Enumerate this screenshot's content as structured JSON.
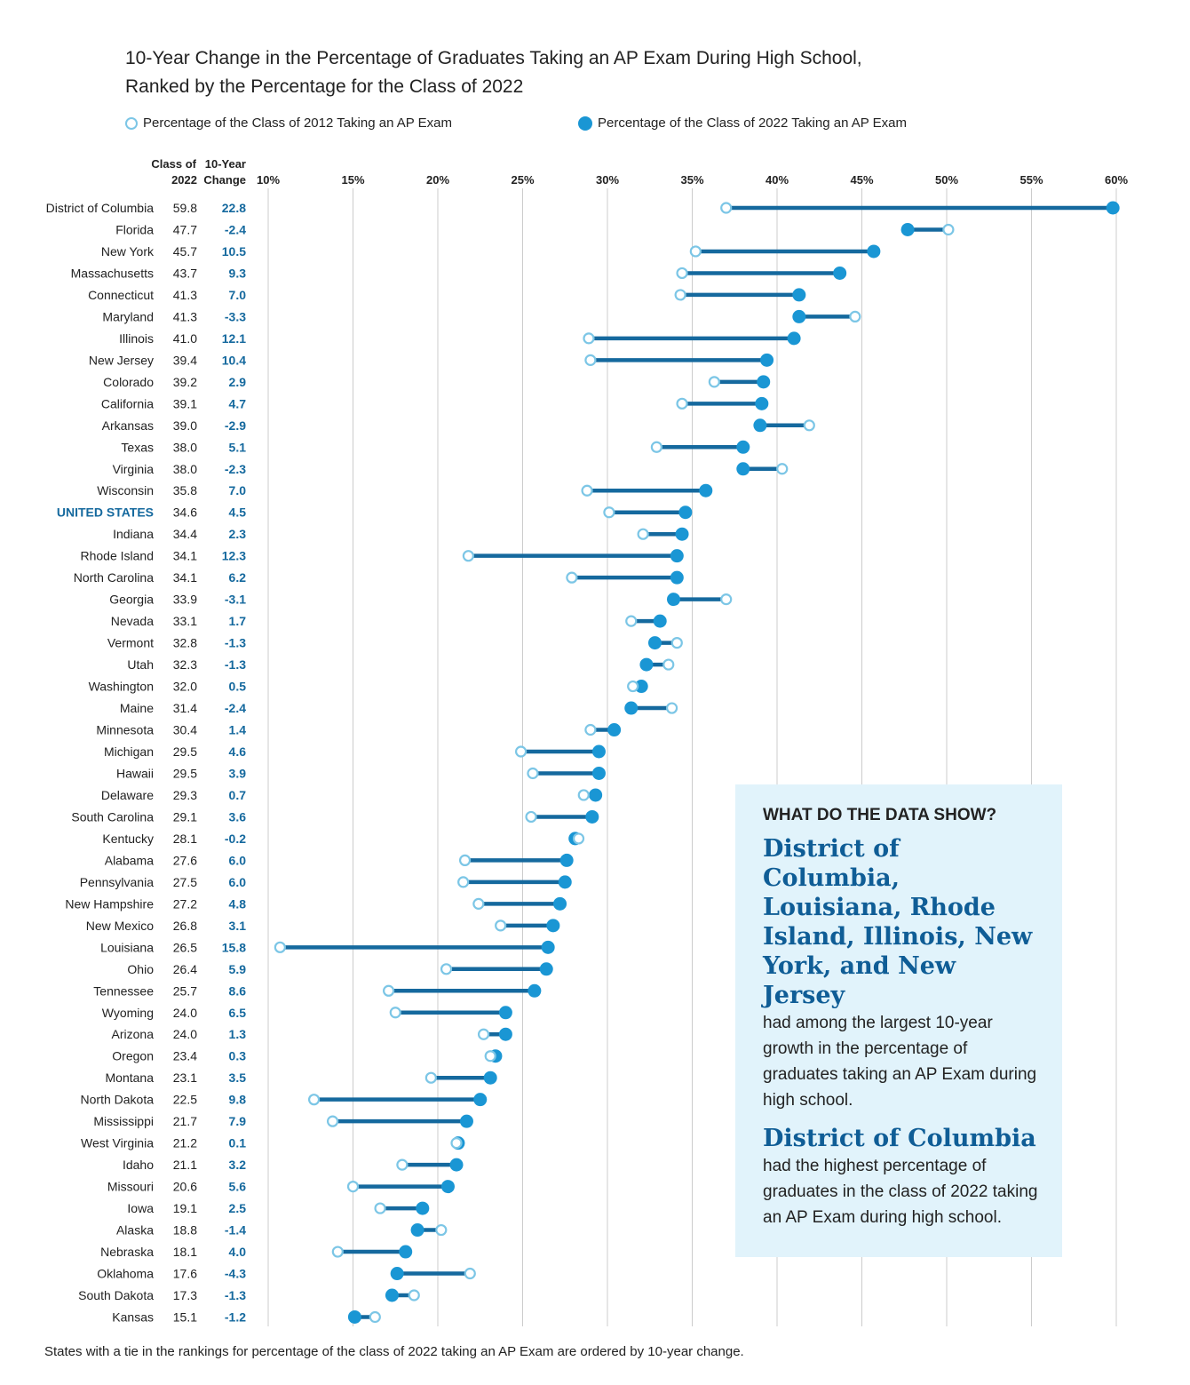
{
  "title": {
    "line1": "10-Year Change in the Percentage of Graduates Taking an AP Exam During High School,",
    "line2": "Ranked by the Percentage for the Class of 2022"
  },
  "legend": {
    "open_label": "Percentage of the Class of 2012 Taking an AP Exam",
    "filled_label": "Percentage of the Class of 2022 Taking an AP Exam"
  },
  "column_headers": {
    "class_line1": "Class of",
    "class_line2": "2022",
    "change_line1": "10-Year",
    "change_line2": "Change"
  },
  "colors": {
    "line": "#15699e",
    "filled": "#1a96d4",
    "open": "#7cc6e6",
    "us_label": "#15699e",
    "change_text": "#15699e",
    "grid": "#cccccc"
  },
  "callout": {
    "heading": "WHAT DO THE DATA SHOW?",
    "highlight1": "District of Columbia, Louisiana, Rhode Island, Illinois, New York, and New Jersey",
    "text1": "had among the largest 10-year growth in the percentage of graduates taking an AP Exam during high school.",
    "highlight2": "District of Columbia",
    "text2": "had the highest percentage of graduates in the class of 2022 taking an AP Exam during high school."
  },
  "footnote": "States with a tie in the rankings for percentage of the class of 2022 taking an AP Exam are ordered by 10-year change.",
  "chart_data": {
    "type": "dumbbell",
    "title": "10-Year Change in the Percentage of Graduates Taking an AP Exam During High School, Ranked by the Percentage for the Class of 2022",
    "xlim": [
      10,
      60
    ],
    "ticks": [
      "10%",
      "15%",
      "20%",
      "25%",
      "30%",
      "35%",
      "40%",
      "45%",
      "50%",
      "55%",
      "60%"
    ],
    "tick_values": [
      10,
      15,
      20,
      25,
      30,
      35,
      40,
      45,
      50,
      55,
      60
    ],
    "series": [
      {
        "name": "Percentage of the Class of 2012 Taking an AP Exam",
        "marker": "open"
      },
      {
        "name": "Percentage of the Class of 2022 Taking an AP Exam",
        "marker": "filled"
      }
    ],
    "rows": [
      {
        "state": "District of Columbia",
        "v2022": "59.8",
        "change": "22.8"
      },
      {
        "state": "Florida",
        "v2022": "47.7",
        "change": "-2.4"
      },
      {
        "state": "New York",
        "v2022": "45.7",
        "change": "10.5"
      },
      {
        "state": "Massachusetts",
        "v2022": "43.7",
        "change": "9.3"
      },
      {
        "state": "Connecticut",
        "v2022": "41.3",
        "change": "7.0"
      },
      {
        "state": "Maryland",
        "v2022": "41.3",
        "change": "-3.3"
      },
      {
        "state": "Illinois",
        "v2022": "41.0",
        "change": "12.1"
      },
      {
        "state": "New Jersey",
        "v2022": "39.4",
        "change": "10.4"
      },
      {
        "state": "Colorado",
        "v2022": "39.2",
        "change": "2.9"
      },
      {
        "state": "California",
        "v2022": "39.1",
        "change": "4.7"
      },
      {
        "state": "Arkansas",
        "v2022": "39.0",
        "change": "-2.9"
      },
      {
        "state": "Texas",
        "v2022": "38.0",
        "change": "5.1"
      },
      {
        "state": "Virginia",
        "v2022": "38.0",
        "change": "-2.3"
      },
      {
        "state": "Wisconsin",
        "v2022": "35.8",
        "change": "7.0"
      },
      {
        "state": "UNITED STATES",
        "v2022": "34.6",
        "change": "4.5",
        "highlight": true
      },
      {
        "state": "Indiana",
        "v2022": "34.4",
        "change": "2.3"
      },
      {
        "state": "Rhode Island",
        "v2022": "34.1",
        "change": "12.3"
      },
      {
        "state": "North Carolina",
        "v2022": "34.1",
        "change": "6.2"
      },
      {
        "state": "Georgia",
        "v2022": "33.9",
        "change": "-3.1"
      },
      {
        "state": "Nevada",
        "v2022": "33.1",
        "change": "1.7"
      },
      {
        "state": "Vermont",
        "v2022": "32.8",
        "change": "-1.3"
      },
      {
        "state": "Utah",
        "v2022": "32.3",
        "change": "-1.3"
      },
      {
        "state": "Washington",
        "v2022": "32.0",
        "change": "0.5"
      },
      {
        "state": "Maine",
        "v2022": "31.4",
        "change": "-2.4"
      },
      {
        "state": "Minnesota",
        "v2022": "30.4",
        "change": "1.4"
      },
      {
        "state": "Michigan",
        "v2022": "29.5",
        "change": "4.6"
      },
      {
        "state": "Hawaii",
        "v2022": "29.5",
        "change": "3.9"
      },
      {
        "state": "Delaware",
        "v2022": "29.3",
        "change": "0.7"
      },
      {
        "state": "South Carolina",
        "v2022": "29.1",
        "change": "3.6"
      },
      {
        "state": "Kentucky",
        "v2022": "28.1",
        "change": "-0.2"
      },
      {
        "state": "Alabama",
        "v2022": "27.6",
        "change": "6.0"
      },
      {
        "state": "Pennsylvania",
        "v2022": "27.5",
        "change": "6.0"
      },
      {
        "state": "New Hampshire",
        "v2022": "27.2",
        "change": "4.8"
      },
      {
        "state": "New Mexico",
        "v2022": "26.8",
        "change": "3.1"
      },
      {
        "state": "Louisiana",
        "v2022": "26.5",
        "change": "15.8"
      },
      {
        "state": "Ohio",
        "v2022": "26.4",
        "change": "5.9"
      },
      {
        "state": "Tennessee",
        "v2022": "25.7",
        "change": "8.6"
      },
      {
        "state": "Wyoming",
        "v2022": "24.0",
        "change": "6.5"
      },
      {
        "state": "Arizona",
        "v2022": "24.0",
        "change": "1.3"
      },
      {
        "state": "Oregon",
        "v2022": "23.4",
        "change": "0.3"
      },
      {
        "state": "Montana",
        "v2022": "23.1",
        "change": "3.5"
      },
      {
        "state": "North Dakota",
        "v2022": "22.5",
        "change": "9.8"
      },
      {
        "state": "Mississippi",
        "v2022": "21.7",
        "change": "7.9"
      },
      {
        "state": "West Virginia",
        "v2022": "21.2",
        "change": "0.1"
      },
      {
        "state": "Idaho",
        "v2022": "21.1",
        "change": "3.2"
      },
      {
        "state": "Missouri",
        "v2022": "20.6",
        "change": "5.6"
      },
      {
        "state": "Iowa",
        "v2022": "19.1",
        "change": "2.5"
      },
      {
        "state": "Alaska",
        "v2022": "18.8",
        "change": "-1.4"
      },
      {
        "state": "Nebraska",
        "v2022": "18.1",
        "change": "4.0"
      },
      {
        "state": "Oklahoma",
        "v2022": "17.6",
        "change": "-4.3"
      },
      {
        "state": "South Dakota",
        "v2022": "17.3",
        "change": "-1.3"
      },
      {
        "state": "Kansas",
        "v2022": "15.1",
        "change": "-1.2"
      }
    ]
  }
}
